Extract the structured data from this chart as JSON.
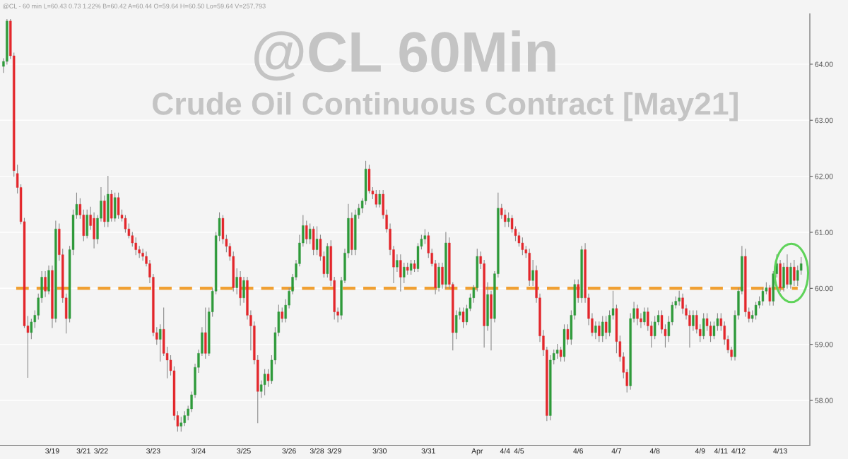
{
  "chart_data": {
    "type": "candlestick",
    "title": "@CL 60Min",
    "subtitle": "Crude Oil Continuous Contract [May21]",
    "annotations": [
      "@CL - 60 min L=60.43 0.73 1.22% B=60.42 A=60.44 O=59.64 H=60.50 Lo=59.64 V=257,793"
    ],
    "categories": [
      null,
      null,
      null,
      null,
      null,
      null,
      null,
      null,
      null,
      null,
      null,
      null,
      null,
      null,
      "3/19",
      null,
      null,
      null,
      null,
      null,
      null,
      null,
      null,
      "3/21",
      null,
      null,
      null,
      null,
      "3/22",
      null,
      null,
      null,
      null,
      null,
      null,
      null,
      null,
      null,
      null,
      null,
      null,
      null,
      null,
      "3/23",
      null,
      null,
      null,
      null,
      null,
      null,
      null,
      null,
      null,
      null,
      null,
      null,
      "3/24",
      null,
      null,
      null,
      null,
      null,
      null,
      null,
      null,
      null,
      null,
      null,
      null,
      "3/25",
      null,
      null,
      null,
      null,
      null,
      null,
      null,
      null,
      null,
      null,
      null,
      null,
      "3/26",
      null,
      null,
      null,
      null,
      null,
      null,
      null,
      "3/28",
      null,
      null,
      null,
      null,
      "3/29",
      null,
      null,
      null,
      null,
      null,
      null,
      null,
      null,
      null,
      null,
      null,
      null,
      "3/30",
      null,
      null,
      null,
      null,
      null,
      null,
      null,
      null,
      null,
      null,
      null,
      null,
      null,
      "3/31",
      null,
      null,
      null,
      null,
      null,
      null,
      null,
      null,
      null,
      null,
      null,
      null,
      null,
      "Apr",
      null,
      null,
      null,
      null,
      null,
      null,
      null,
      "4/4",
      null,
      null,
      null,
      "4/5",
      null,
      null,
      null,
      null,
      null,
      null,
      null,
      null,
      null,
      null,
      null,
      null,
      null,
      null,
      null,
      null,
      "4/6",
      null,
      null,
      null,
      null,
      null,
      null,
      null,
      null,
      null,
      null,
      "4/7",
      null,
      null,
      null,
      null,
      null,
      null,
      null,
      null,
      null,
      null,
      "4/8",
      null,
      null,
      null,
      null,
      null,
      null,
      null,
      null,
      null,
      null,
      null,
      null,
      "4/9",
      null,
      null,
      null,
      null,
      null,
      "4/11",
      null,
      null,
      null,
      null,
      "4/12",
      null,
      null,
      null,
      null,
      null,
      null,
      null,
      null,
      null,
      null,
      null,
      "4/13",
      null,
      null,
      null,
      null,
      null,
      null
    ],
    "colors": [
      "#2e9a3a",
      "#2e9a3a",
      "#e3262b",
      "#e3262b",
      "#e3262b",
      "#e3262b",
      "#e3262b",
      "#e3262b",
      "#2e9a3a",
      "#2e9a3a",
      "#2e9a3a",
      "#2e9a3a",
      "#e3262b",
      "#2e9a3a",
      "#e3262b",
      "#2e9a3a",
      "#e3262b",
      "#e3262b",
      "#e3262b",
      "#2e9a3a",
      "#2e9a3a",
      "#2e9a3a",
      "#e3262b",
      "#e3262b",
      "#2e9a3a",
      "#e3262b",
      "#e3262b",
      "#2e9a3a",
      "#2e9a3a",
      "#e3262b",
      "#2e9a3a",
      "#e3262b",
      "#2e9a3a",
      "#e3262b",
      "#e3262b",
      "#e3262b",
      "#e3262b",
      "#e3262b",
      "#e3262b",
      "#e3262b",
      "#e3262b",
      "#e3262b",
      "#e3262b",
      "#e3262b",
      "#e3262b",
      "#2e9a3a",
      "#e3262b",
      "#e3262b",
      "#e3262b",
      "#e3262b",
      "#e3262b",
      "#2e9a3a",
      "#2e9a3a",
      "#2e9a3a",
      "#2e9a3a",
      "#2e9a3a",
      "#2e9a3a",
      "#2e9a3a",
      "#e3262b",
      "#2e9a3a",
      "#2e9a3a",
      "#2e9a3a",
      "#2e9a3a",
      "#e3262b",
      "#e3262b",
      "#e3262b",
      "#e3262b",
      "#2e9a3a",
      "#e3262b",
      "#2e9a3a",
      "#e3262b",
      "#e3262b",
      "#e3262b",
      "#e3262b",
      "#2e9a3a",
      "#2e9a3a",
      "#e3262b",
      "#2e9a3a",
      "#2e9a3a",
      "#2e9a3a",
      "#e3262b",
      "#2e9a3a",
      "#2e9a3a",
      "#2e9a3a",
      "#2e9a3a",
      "#2e9a3a",
      "#2e9a3a",
      "#e3262b",
      "#2e9a3a",
      "#e3262b",
      "#2e9a3a",
      "#e3262b",
      "#e3262b",
      "#2e9a3a",
      "#e3262b",
      "#e3262b",
      "#e3262b",
      "#2e9a3a",
      "#2e9a3a",
      "#2e9a3a",
      "#e3262b",
      "#2e9a3a",
      "#2e9a3a",
      "#2e9a3a",
      "#2e9a3a",
      "#e3262b",
      "#e3262b",
      "#e3262b",
      "#2e9a3a",
      "#e3262b",
      "#e3262b",
      "#e3262b",
      "#e3262b",
      "#2e9a3a",
      "#e3262b",
      "#2e9a3a",
      "#e3262b",
      "#2e9a3a",
      "#e3262b",
      "#2e9a3a",
      "#2e9a3a",
      "#2e9a3a",
      "#e3262b",
      "#e3262b",
      "#e3262b",
      "#2e9a3a",
      "#e3262b",
      "#2e9a3a",
      "#e3262b",
      "#e3262b",
      "#2e9a3a",
      "#2e9a3a",
      "#e3262b",
      "#2e9a3a",
      "#2e9a3a",
      "#2e9a3a",
      "#2e9a3a",
      "#e3262b",
      "#e3262b",
      "#2e9a3a",
      "#e3262b",
      "#2e9a3a",
      "#2e9a3a",
      "#e3262b",
      "#e3262b",
      "#2e9a3a",
      "#e3262b",
      "#e3262b",
      "#e3262b",
      "#e3262b",
      "#e3262b",
      "#e3262b",
      "#2e9a3a",
      "#e3262b",
      "#e3262b",
      "#e3262b",
      "#e3262b",
      "#2e9a3a",
      "#2e9a3a",
      "#2e9a3a",
      "#e3262b",
      "#2e9a3a",
      "#e3262b",
      "#2e9a3a",
      "#2e9a3a",
      "#e3262b",
      "#2e9a3a",
      "#e3262b",
      "#e3262b",
      "#e3262b",
      "#2e9a3a",
      "#e3262b",
      "#2e9a3a",
      "#e3262b",
      "#2e9a3a",
      "#2e9a3a",
      "#e3262b",
      "#e3262b",
      "#e3262b",
      "#e3262b",
      "#2e9a3a",
      "#2e9a3a",
      "#e3262b",
      "#e3262b",
      "#2e9a3a",
      "#e3262b",
      "#e3262b",
      "#2e9a3a",
      "#2e9a3a",
      "#e3262b",
      "#e3262b",
      "#2e9a3a",
      "#2e9a3a",
      "#2e9a3a",
      "#2e9a3a",
      "#e3262b",
      "#e3262b",
      "#e3262b",
      "#2e9a3a",
      "#e3262b",
      "#e3262b",
      "#2e9a3a",
      "#e3262b",
      "#e3262b",
      "#2e9a3a",
      "#2e9a3a",
      "#e3262b",
      "#e3262b",
      "#e3262b",
      "#e3262b",
      "#2e9a3a",
      "#2e9a3a",
      "#2e9a3a",
      "#e3262b",
      "#e3262b",
      "#2e9a3a",
      "#2e9a3a",
      "#2e9a3a",
      "#2e9a3a",
      "#2e9a3a",
      "#e3262b",
      "#2e9a3a",
      "#2e9a3a",
      "#e3262b",
      "#2e9a3a",
      "#e3262b",
      "#2e9a3a",
      "#e3262b",
      "#2e9a3a",
      "#2e9a3a"
    ],
    "ohlc": [
      [
        63.96,
        64.1,
        63.85,
        64.05
      ],
      [
        64.05,
        64.8,
        64.0,
        64.77
      ],
      [
        64.77,
        64.8,
        64.1,
        64.15
      ],
      [
        64.15,
        64.2,
        62.0,
        62.1
      ],
      [
        62.05,
        62.2,
        61.7,
        61.8
      ],
      [
        61.8,
        61.85,
        61.15,
        61.19
      ],
      [
        61.19,
        61.25,
        59.3,
        59.33
      ],
      [
        59.33,
        59.5,
        58.41,
        59.21
      ],
      [
        59.21,
        59.45,
        59.1,
        59.4
      ],
      [
        59.4,
        59.6,
        59.3,
        59.52
      ],
      [
        59.52,
        59.9,
        59.45,
        59.83
      ],
      [
        59.83,
        60.3,
        59.75,
        60.2
      ],
      [
        60.2,
        60.3,
        59.85,
        59.95
      ],
      [
        59.95,
        60.4,
        59.9,
        60.32
      ],
      [
        60.32,
        60.4,
        59.3,
        59.46
      ],
      [
        59.46,
        61.2,
        59.4,
        61.06
      ],
      [
        61.06,
        61.15,
        60.5,
        60.6
      ],
      [
        60.6,
        60.7,
        59.75,
        59.83
      ],
      [
        59.83,
        59.9,
        59.2,
        59.46
      ],
      [
        59.46,
        60.75,
        59.4,
        60.69
      ],
      [
        60.69,
        61.4,
        60.6,
        61.31
      ],
      [
        61.31,
        61.7,
        61.25,
        61.5
      ],
      [
        61.5,
        61.6,
        61.25,
        61.31
      ],
      [
        61.31,
        61.4,
        60.85,
        60.94
      ],
      [
        60.94,
        61.4,
        60.9,
        61.31
      ],
      [
        61.31,
        61.45,
        61.05,
        61.12
      ],
      [
        61.25,
        61.35,
        60.72,
        60.88
      ],
      [
        60.88,
        61.3,
        60.8,
        61.25
      ],
      [
        61.25,
        61.8,
        61.2,
        61.56
      ],
      [
        61.56,
        61.65,
        61.1,
        61.19
      ],
      [
        61.19,
        62.0,
        61.1,
        61.68
      ],
      [
        61.68,
        61.75,
        61.2,
        61.25
      ],
      [
        61.25,
        61.7,
        61.2,
        61.62
      ],
      [
        61.62,
        61.7,
        61.25,
        61.31
      ],
      [
        61.31,
        61.4,
        61.2,
        61.25
      ],
      [
        61.25,
        61.3,
        61.0,
        61.06
      ],
      [
        61.06,
        61.15,
        60.9,
        60.94
      ],
      [
        60.94,
        61.0,
        60.75,
        60.81
      ],
      [
        60.81,
        60.9,
        60.6,
        60.69
      ],
      [
        60.69,
        60.75,
        60.55,
        60.63
      ],
      [
        60.63,
        60.7,
        60.5,
        60.57
      ],
      [
        60.57,
        60.65,
        60.4,
        60.44
      ],
      [
        60.44,
        60.5,
        60.1,
        60.2
      ],
      [
        60.2,
        60.25,
        59.15,
        59.21
      ],
      [
        59.21,
        59.3,
        59.0,
        59.09
      ],
      [
        59.09,
        59.35,
        58.7,
        59.27
      ],
      [
        59.27,
        59.65,
        58.8,
        58.84
      ],
      [
        58.84,
        58.95,
        58.4,
        58.72
      ],
      [
        58.72,
        58.8,
        58.45,
        58.53
      ],
      [
        58.53,
        58.6,
        57.65,
        57.73
      ],
      [
        57.73,
        57.8,
        57.45,
        57.54
      ],
      [
        57.54,
        57.7,
        57.45,
        57.6
      ],
      [
        57.6,
        57.8,
        57.55,
        57.73
      ],
      [
        57.73,
        57.9,
        57.65,
        57.85
      ],
      [
        57.85,
        58.15,
        57.8,
        58.1
      ],
      [
        58.1,
        58.65,
        58.05,
        58.59
      ],
      [
        58.59,
        58.9,
        58.5,
        58.84
      ],
      [
        58.84,
        59.3,
        58.8,
        59.21
      ],
      [
        59.21,
        59.65,
        58.75,
        58.84
      ],
      [
        58.84,
        59.65,
        58.8,
        59.58
      ],
      [
        59.58,
        60.0,
        59.5,
        59.95
      ],
      [
        59.95,
        61.0,
        59.9,
        60.94
      ],
      [
        60.94,
        61.35,
        60.85,
        61.25
      ],
      [
        61.25,
        61.3,
        60.8,
        60.88
      ],
      [
        60.88,
        60.95,
        60.65,
        60.75
      ],
      [
        60.75,
        60.8,
        60.5,
        60.57
      ],
      [
        60.57,
        60.65,
        59.95,
        60.01
      ],
      [
        60.01,
        60.35,
        59.9,
        60.2
      ],
      [
        60.2,
        60.3,
        59.7,
        59.83
      ],
      [
        59.83,
        60.2,
        59.75,
        60.14
      ],
      [
        60.14,
        60.2,
        59.45,
        59.52
      ],
      [
        59.52,
        59.6,
        58.9,
        59.33
      ],
      [
        59.33,
        59.4,
        58.65,
        58.72
      ],
      [
        58.72,
        58.8,
        57.6,
        58.16
      ],
      [
        58.16,
        58.35,
        58.05,
        58.28
      ],
      [
        58.28,
        58.55,
        58.1,
        58.47
      ],
      [
        58.47,
        58.55,
        58.25,
        58.35
      ],
      [
        58.35,
        58.8,
        58.3,
        58.72
      ],
      [
        58.72,
        59.3,
        58.65,
        59.21
      ],
      [
        59.21,
        59.7,
        59.15,
        59.58
      ],
      [
        59.58,
        59.65,
        59.4,
        59.46
      ],
      [
        59.46,
        59.8,
        59.4,
        59.7
      ],
      [
        59.7,
        60.0,
        59.65,
        59.95
      ],
      [
        59.95,
        60.25,
        59.9,
        60.2
      ],
      [
        60.2,
        60.5,
        60.15,
        60.44
      ],
      [
        60.44,
        60.95,
        60.4,
        60.81
      ],
      [
        60.81,
        61.3,
        60.75,
        61.12
      ],
      [
        61.12,
        61.2,
        60.8,
        60.88
      ],
      [
        60.88,
        61.15,
        60.8,
        61.06
      ],
      [
        61.06,
        61.1,
        60.6,
        60.69
      ],
      [
        60.69,
        61.1,
        60.6,
        60.88
      ],
      [
        60.88,
        60.95,
        60.5,
        60.57
      ],
      [
        60.57,
        60.65,
        60.2,
        60.26
      ],
      [
        60.26,
        60.8,
        60.2,
        60.75
      ],
      [
        60.75,
        60.85,
        60.05,
        60.14
      ],
      [
        60.14,
        60.2,
        59.45,
        59.58
      ],
      [
        59.58,
        59.65,
        59.4,
        59.52
      ],
      [
        59.52,
        60.2,
        59.45,
        60.14
      ],
      [
        60.14,
        60.7,
        60.1,
        60.63
      ],
      [
        60.63,
        61.5,
        60.55,
        61.25
      ],
      [
        61.25,
        61.35,
        60.6,
        60.69
      ],
      [
        60.69,
        61.4,
        60.6,
        61.31
      ],
      [
        61.31,
        61.5,
        61.25,
        61.43
      ],
      [
        61.43,
        61.6,
        61.35,
        61.56
      ],
      [
        61.56,
        62.27,
        61.5,
        62.13
      ],
      [
        62.13,
        62.2,
        61.7,
        61.74
      ],
      [
        61.74,
        61.8,
        61.6,
        61.68
      ],
      [
        61.68,
        61.75,
        61.45,
        61.5
      ],
      [
        61.5,
        61.75,
        61.45,
        61.68
      ],
      [
        61.68,
        61.75,
        61.25,
        61.31
      ],
      [
        61.31,
        61.4,
        61.0,
        61.06
      ],
      [
        61.06,
        61.15,
        60.6,
        60.69
      ],
      [
        60.69,
        60.75,
        60.1,
        60.38
      ],
      [
        60.38,
        60.6,
        60.3,
        60.5
      ],
      [
        60.5,
        60.6,
        59.95,
        60.2
      ],
      [
        60.2,
        60.45,
        60.1,
        60.38
      ],
      [
        60.38,
        60.45,
        60.25,
        60.32
      ],
      [
        60.32,
        60.5,
        60.25,
        60.44
      ],
      [
        60.44,
        60.5,
        60.3,
        60.35
      ],
      [
        60.35,
        60.8,
        60.3,
        60.75
      ],
      [
        60.75,
        60.95,
        60.7,
        60.88
      ],
      [
        60.88,
        61.05,
        60.8,
        60.94
      ],
      [
        60.94,
        61.0,
        60.55,
        60.63
      ],
      [
        60.63,
        60.7,
        60.4,
        60.44
      ],
      [
        60.44,
        60.5,
        59.9,
        60.01
      ],
      [
        60.01,
        60.45,
        59.95,
        60.38
      ],
      [
        60.38,
        60.45,
        60.0,
        60.07
      ],
      [
        60.07,
        61.0,
        60.0,
        60.81
      ],
      [
        60.81,
        60.9,
        60.0,
        60.07
      ],
      [
        60.07,
        60.1,
        58.9,
        59.21
      ],
      [
        59.21,
        59.6,
        59.1,
        59.52
      ],
      [
        59.52,
        59.65,
        59.45,
        59.58
      ],
      [
        59.58,
        59.65,
        59.3,
        59.4
      ],
      [
        59.4,
        59.7,
        59.35,
        59.64
      ],
      [
        59.64,
        59.9,
        59.6,
        59.83
      ],
      [
        59.83,
        60.05,
        59.75,
        60.01
      ],
      [
        60.01,
        60.7,
        59.95,
        60.57
      ],
      [
        60.57,
        60.65,
        60.35,
        60.44
      ],
      [
        60.44,
        60.5,
        58.95,
        59.33
      ],
      [
        59.33,
        60.1,
        59.25,
        59.89
      ],
      [
        59.89,
        59.95,
        58.9,
        59.46
      ],
      [
        59.46,
        60.3,
        59.4,
        60.26
      ],
      [
        60.26,
        61.7,
        60.2,
        61.43
      ],
      [
        61.43,
        61.5,
        61.25,
        61.31
      ],
      [
        61.31,
        61.4,
        61.1,
        61.19
      ],
      [
        61.19,
        61.35,
        61.1,
        61.25
      ],
      [
        61.25,
        61.3,
        61.0,
        61.06
      ],
      [
        61.06,
        61.1,
        60.85,
        60.94
      ],
      [
        60.94,
        61.0,
        60.75,
        60.81
      ],
      [
        60.81,
        60.9,
        60.6,
        60.69
      ],
      [
        60.69,
        60.75,
        60.55,
        60.63
      ],
      [
        60.63,
        60.7,
        60.05,
        60.14
      ],
      [
        60.14,
        60.5,
        60.05,
        60.32
      ],
      [
        60.32,
        60.4,
        59.75,
        59.83
      ],
      [
        59.83,
        59.9,
        59.05,
        59.15
      ],
      [
        59.15,
        59.25,
        58.8,
        58.9
      ],
      [
        58.9,
        58.95,
        57.64,
        57.73
      ],
      [
        57.73,
        58.8,
        57.65,
        58.72
      ],
      [
        58.72,
        58.9,
        58.65,
        58.84
      ],
      [
        58.84,
        59.0,
        58.75,
        58.9
      ],
      [
        58.9,
        58.95,
        58.7,
        58.78
      ],
      [
        58.78,
        59.35,
        58.7,
        59.27
      ],
      [
        59.27,
        59.35,
        59.0,
        59.09
      ],
      [
        59.09,
        59.6,
        59.0,
        59.52
      ],
      [
        59.52,
        60.15,
        59.45,
        60.07
      ],
      [
        60.07,
        60.15,
        59.75,
        59.83
      ],
      [
        59.83,
        60.75,
        59.75,
        60.69
      ],
      [
        60.69,
        60.8,
        59.75,
        59.83
      ],
      [
        59.83,
        59.9,
        59.35,
        59.46
      ],
      [
        59.46,
        59.55,
        59.15,
        59.21
      ],
      [
        59.21,
        59.4,
        59.1,
        59.33
      ],
      [
        59.33,
        59.4,
        59.05,
        59.15
      ],
      [
        59.15,
        59.5,
        59.05,
        59.4
      ],
      [
        59.4,
        59.5,
        59.1,
        59.21
      ],
      [
        59.21,
        59.6,
        59.15,
        59.52
      ],
      [
        59.52,
        59.95,
        59.45,
        59.64
      ],
      [
        59.64,
        59.7,
        58.85,
        59.05
      ],
      [
        59.05,
        59.15,
        58.7,
        58.78
      ],
      [
        58.78,
        58.85,
        58.4,
        58.5
      ],
      [
        58.5,
        58.55,
        58.15,
        58.26
      ],
      [
        58.26,
        59.55,
        58.2,
        59.46
      ],
      [
        59.46,
        59.75,
        59.4,
        59.64
      ],
      [
        59.64,
        59.7,
        59.35,
        59.46
      ],
      [
        59.46,
        59.55,
        59.3,
        59.4
      ],
      [
        59.4,
        59.65,
        59.35,
        59.58
      ],
      [
        59.58,
        59.65,
        59.25,
        59.33
      ],
      [
        59.33,
        59.4,
        58.95,
        59.15
      ],
      [
        59.15,
        59.5,
        59.1,
        59.4
      ],
      [
        59.4,
        59.6,
        59.35,
        59.52
      ],
      [
        59.52,
        59.6,
        59.2,
        59.27
      ],
      [
        59.27,
        59.35,
        58.95,
        59.15
      ],
      [
        59.15,
        59.5,
        59.05,
        59.4
      ],
      [
        59.4,
        59.75,
        59.35,
        59.7
      ],
      [
        59.7,
        59.85,
        59.65,
        59.77
      ],
      [
        59.77,
        59.95,
        59.7,
        59.83
      ],
      [
        59.83,
        59.9,
        59.55,
        59.64
      ],
      [
        59.64,
        59.7,
        59.45,
        59.52
      ],
      [
        59.52,
        59.6,
        58.95,
        59.33
      ],
      [
        59.33,
        59.6,
        59.25,
        59.52
      ],
      [
        59.52,
        59.6,
        59.2,
        59.27
      ],
      [
        59.27,
        59.35,
        59.05,
        59.15
      ],
      [
        59.15,
        59.55,
        59.1,
        59.46
      ],
      [
        59.46,
        59.55,
        59.25,
        59.33
      ],
      [
        59.33,
        59.4,
        59.05,
        59.15
      ],
      [
        59.15,
        59.4,
        59.1,
        59.33
      ],
      [
        59.33,
        59.55,
        59.25,
        59.46
      ],
      [
        59.46,
        59.55,
        59.25,
        59.33
      ],
      [
        59.33,
        59.4,
        59.0,
        59.09
      ],
      [
        59.09,
        59.15,
        58.85,
        58.9
      ],
      [
        58.9,
        58.95,
        58.72,
        58.78
      ],
      [
        58.78,
        59.6,
        58.72,
        59.52
      ],
      [
        59.52,
        60.0,
        59.45,
        59.95
      ],
      [
        59.95,
        60.75,
        59.9,
        60.57
      ],
      [
        60.57,
        60.7,
        59.5,
        59.58
      ],
      [
        59.58,
        59.65,
        59.4,
        59.46
      ],
      [
        59.46,
        59.6,
        59.4,
        59.52
      ],
      [
        59.52,
        59.75,
        59.45,
        59.7
      ],
      [
        59.7,
        59.85,
        59.65,
        59.77
      ],
      [
        59.77,
        60.0,
        59.7,
        59.95
      ],
      [
        59.95,
        60.1,
        59.9,
        60.01
      ],
      [
        60.01,
        60.05,
        59.7,
        59.77
      ],
      [
        59.77,
        60.3,
        59.7,
        60.26
      ],
      [
        60.26,
        60.6,
        60.2,
        60.44
      ],
      [
        60.44,
        60.5,
        59.95,
        60.01
      ],
      [
        60.01,
        60.45,
        59.95,
        60.38
      ],
      [
        60.38,
        60.6,
        60.0,
        60.07
      ],
      [
        60.07,
        60.45,
        60.0,
        60.38
      ],
      [
        60.38,
        60.5,
        60.05,
        60.14
      ],
      [
        60.14,
        60.4,
        60.05,
        60.32
      ],
      [
        60.32,
        60.55,
        60.25,
        60.44
      ]
    ],
    "ylim": [
      57.2,
      64.9
    ],
    "yticks": [
      {
        "value": 58,
        "label": "58.00"
      },
      {
        "value": 59,
        "label": "59.00"
      },
      {
        "value": 60,
        "label": "60.00"
      },
      {
        "value": 61,
        "label": "61.00"
      },
      {
        "value": 62,
        "label": "62.00"
      },
      {
        "value": 63,
        "label": "63.00"
      },
      {
        "value": 64,
        "label": "64.00"
      }
    ],
    "ref_lines": [
      {
        "axis": "y",
        "value": 60.0,
        "color": "#f0a033",
        "line_style": "dashed"
      }
    ],
    "grid": "y",
    "legend": false
  }
}
